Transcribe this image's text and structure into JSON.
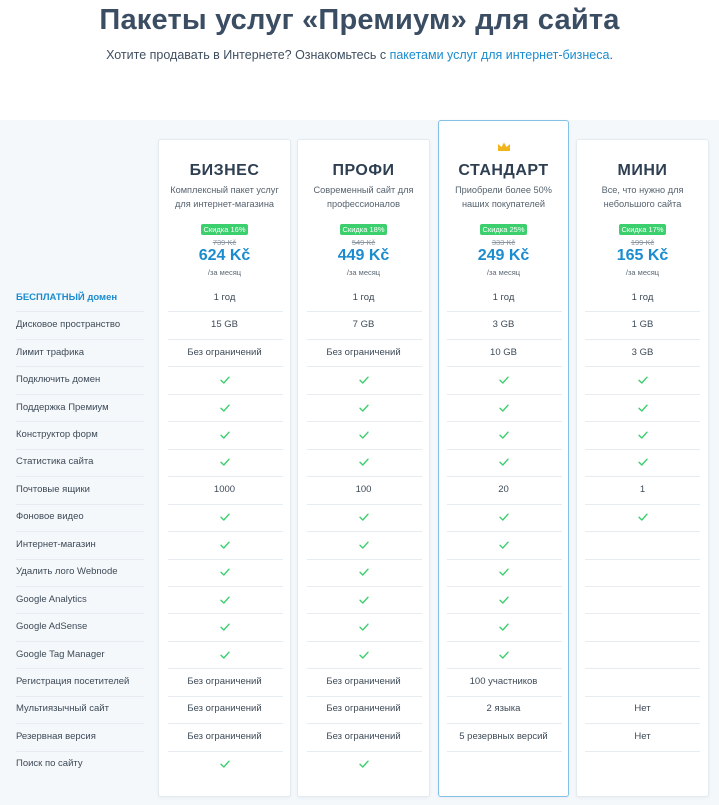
{
  "header": {
    "title": "Пакеты услуг «Премиум» для сайта",
    "subtitle_text": "Хотите продавать в Интернете? Ознакомьтесь с ",
    "subtitle_link": "пакетами услуг для интернет-бизнеса",
    "subtitle_end": "."
  },
  "plans": [
    {
      "name": "БИЗНЕС",
      "desc": "Комплексный пакет услуг для интернет-магазина",
      "discount": "Скидка 16%",
      "old_price": "739 Kč",
      "price": "624 Kč",
      "per": "/за месяц",
      "featured": false
    },
    {
      "name": "ПРОФИ",
      "desc": "Современный сайт для профессионалов",
      "discount": "Скидка 18%",
      "old_price": "549 Kč",
      "price": "449 Kč",
      "per": "/за месяц",
      "featured": false
    },
    {
      "name": "СТАНДАРТ",
      "desc": "Приобрели более 50% наших покупателей",
      "discount": "Скидка 25%",
      "old_price": "333 Kč",
      "price": "249 Kč",
      "per": "/за месяц",
      "featured": true,
      "badge_icon": "crown-icon"
    },
    {
      "name": "МИНИ",
      "desc": "Все, что нужно для небольшого сайта",
      "discount": "Скидка 17%",
      "old_price": "199 Kč",
      "price": "165 Kč",
      "per": "/за месяц",
      "featured": false
    }
  ],
  "features": [
    {
      "label": "БЕСПЛАТНЫЙ домен",
      "highlight": true,
      "values": [
        "1 год",
        "1 год",
        "1 год",
        "1 год"
      ]
    },
    {
      "label": "Дисковое пространство",
      "values": [
        "15 GB",
        "7 GB",
        "3 GB",
        "1 GB"
      ]
    },
    {
      "label": "Лимит трафика",
      "values": [
        "Без ограничений",
        "Без ограничений",
        "10 GB",
        "3 GB"
      ]
    },
    {
      "label": "Подключить домен",
      "values": [
        "check",
        "check",
        "check",
        "check"
      ]
    },
    {
      "label": "Поддержка Премиум",
      "values": [
        "check",
        "check",
        "check",
        "check"
      ]
    },
    {
      "label": "Конструктор форм",
      "values": [
        "check",
        "check",
        "check",
        "check"
      ]
    },
    {
      "label": "Статистика сайта",
      "values": [
        "check",
        "check",
        "check",
        "check"
      ]
    },
    {
      "label": "Почтовые ящики",
      "values": [
        "1000",
        "100",
        "20",
        "1"
      ]
    },
    {
      "label": "Фоновое видео",
      "values": [
        "check",
        "check",
        "check",
        "check"
      ]
    },
    {
      "label": "Интернет-магазин",
      "values": [
        "check",
        "check",
        "check",
        ""
      ]
    },
    {
      "label": "Удалить лого Webnode",
      "values": [
        "check",
        "check",
        "check",
        ""
      ]
    },
    {
      "label": "Google Analytics",
      "values": [
        "check",
        "check",
        "check",
        ""
      ]
    },
    {
      "label": "Google AdSense",
      "values": [
        "check",
        "check",
        "check",
        ""
      ]
    },
    {
      "label": "Google Tag Manager",
      "values": [
        "check",
        "check",
        "check",
        ""
      ]
    },
    {
      "label": "Регистрация посетителей",
      "values": [
        "Без ограничений",
        "Без ограничений",
        "100 участников",
        ""
      ]
    },
    {
      "label": "Мультиязычный сайт",
      "values": [
        "Без ограничений",
        "Без ограничений",
        "2 языка",
        "Нет"
      ]
    },
    {
      "label": "Резервная версия",
      "values": [
        "Без ограничений",
        "Без ограничений",
        "5 резервных версий",
        "Нет"
      ]
    },
    {
      "label": "Поиск по сайту",
      "values": [
        "check",
        "check",
        "",
        ""
      ]
    }
  ],
  "colors": {
    "accent": "#1a8ccf",
    "check": "#3ccf6e",
    "discount": "#3ccf6e",
    "crown": "#f2b41b"
  }
}
